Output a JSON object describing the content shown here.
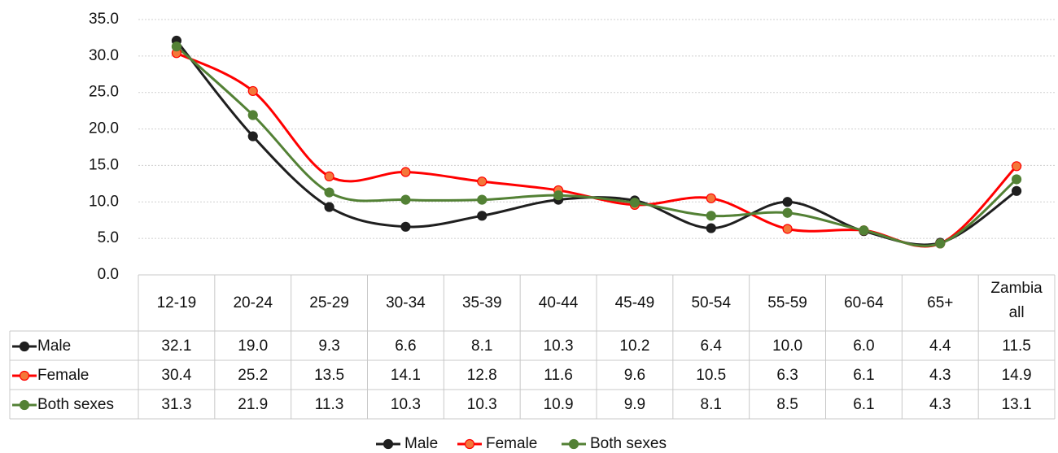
{
  "chart_data": {
    "type": "line",
    "categories": [
      "12-19",
      "20-24",
      "25-29",
      "30-34",
      "35-39",
      "40-44",
      "45-49",
      "50-54",
      "55-59",
      "60-64",
      "65+",
      "Zambia all"
    ],
    "series": [
      {
        "name": "Male",
        "color": "#1f1f1f",
        "marker_fill": "#1f1f1f",
        "values": [
          32.1,
          19.0,
          9.3,
          6.6,
          8.1,
          10.3,
          10.2,
          6.4,
          10.0,
          6.0,
          4.4,
          11.5
        ]
      },
      {
        "name": "Female",
        "color": "#ff0000",
        "marker_fill": "#f4773a",
        "values": [
          30.4,
          25.2,
          13.5,
          14.1,
          12.8,
          11.6,
          9.6,
          10.5,
          6.3,
          6.1,
          4.3,
          14.9
        ]
      },
      {
        "name": "Both sexes",
        "color": "#538135",
        "marker_fill": "#538135",
        "values": [
          31.3,
          21.9,
          11.3,
          10.3,
          10.3,
          10.9,
          9.9,
          8.1,
          8.5,
          6.1,
          4.3,
          13.1
        ]
      }
    ],
    "ylim": [
      0,
      35
    ],
    "yticks": [
      0,
      5,
      10,
      15,
      20,
      25,
      30,
      35
    ],
    "ytick_labels": [
      "0.0",
      "5.0",
      "10.0",
      "15.0",
      "20.0",
      "25.0",
      "30.0",
      "35.0"
    ],
    "smooth_lines": true,
    "gridlines": "horizontal-dotted",
    "data_table": true,
    "legend_position": "bottom"
  }
}
